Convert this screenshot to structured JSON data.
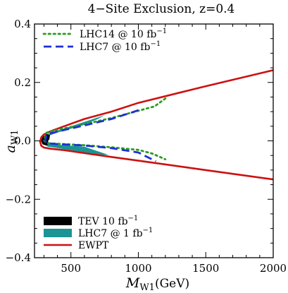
{
  "chart_data": {
    "type": "line",
    "title": "4−Site Exclusion, z=0.4",
    "xlabel_main": "M",
    "xlabel_sub": "W1",
    "xlabel_unit": "(GeV)",
    "ylabel_main": "a",
    "ylabel_sub": "W1",
    "xlim": [
      230,
      2000
    ],
    "ylim": [
      -0.4,
      0.4
    ],
    "x_ticks": [
      500,
      1000,
      1500,
      2000
    ],
    "y_ticks": [
      -0.4,
      -0.2,
      0.0,
      0.2,
      0.4
    ],
    "y_tick_labels": [
      "−0.4",
      "−0.2",
      "0.0",
      "0.2",
      "0.4"
    ],
    "grid": false,
    "colors": {
      "lhc14": "#2a9d1f",
      "lhc7_10": "#1f2fd6",
      "tev": "#000000",
      "lhc7_1": "#1a9494",
      "ewpt": "#cc1111"
    },
    "legend_top": [
      {
        "key": "lhc14",
        "style": "dotted",
        "label": "LHC14  @ 10 fb",
        "sup": "−1"
      },
      {
        "key": "lhc7_10",
        "style": "dashed",
        "label": "LHC7   @ 10 fb",
        "sup": "−1"
      }
    ],
    "legend_bottom": [
      {
        "key": "tev",
        "style": "fill",
        "label": "TEV 10 fb",
        "sup": "−1"
      },
      {
        "key": "lhc7_1",
        "style": "fill",
        "label": "LHC7   @   1 fb",
        "sup": "−1"
      },
      {
        "key": "ewpt",
        "style": "solid",
        "label": "EWPT",
        "sup": ""
      }
    ],
    "series": [
      {
        "key": "ewpt",
        "style": "solid",
        "x": [
          2000,
          1500,
          1000,
          800,
          600,
          450,
          350,
          300,
          280,
          272,
          280,
          300,
          350,
          450,
          600,
          800,
          1000,
          1500,
          2000
        ],
        "y": [
          0.242,
          0.187,
          0.13,
          0.1,
          0.075,
          0.05,
          0.033,
          0.022,
          0.012,
          -0.003,
          -0.017,
          -0.023,
          -0.027,
          -0.032,
          -0.042,
          -0.055,
          -0.068,
          -0.1,
          -0.132
        ]
      },
      {
        "key": "lhc14",
        "style": "dotted",
        "x": [
          1200,
          1120,
          1000,
          800,
          600,
          400,
          320,
          300,
          320,
          400,
          600,
          800,
          1000,
          1100,
          1200
        ],
        "y": [
          0.145,
          0.118,
          0.103,
          0.078,
          0.057,
          0.038,
          0.028,
          0.002,
          -0.008,
          -0.01,
          -0.015,
          -0.022,
          -0.031,
          -0.043,
          -0.063
        ]
      },
      {
        "key": "lhc7_10",
        "style": "dashed",
        "x": [
          1000,
          950,
          800,
          600,
          400,
          320,
          310,
          320,
          400,
          600,
          800,
          1000,
          1130
        ],
        "y": [
          0.105,
          0.097,
          0.075,
          0.053,
          0.032,
          0.022,
          0.0,
          -0.008,
          -0.011,
          -0.016,
          -0.025,
          -0.04,
          -0.07
        ]
      }
    ],
    "regions": [
      {
        "key": "lhc7_1",
        "x": [
          285,
          320,
          400,
          600,
          750,
          700,
          600,
          400,
          320,
          300,
          320,
          400,
          600,
          780,
          700,
          600,
          400,
          330,
          300,
          285
        ],
        "y": [
          0.0,
          0.022,
          0.035,
          0.065,
          0.088,
          0.075,
          0.055,
          0.028,
          0.015,
          0.0,
          -0.01,
          -0.013,
          -0.02,
          -0.048,
          -0.048,
          -0.04,
          -0.025,
          -0.02,
          -0.012,
          0.0
        ]
      },
      {
        "key": "tev",
        "x": [
          278,
          290,
          320,
          345,
          340,
          330,
          335,
          320,
          290,
          278
        ],
        "y": [
          0.0,
          0.014,
          0.023,
          0.02,
          0.005,
          0.0,
          -0.01,
          -0.016,
          -0.012,
          0.0
        ]
      }
    ]
  }
}
